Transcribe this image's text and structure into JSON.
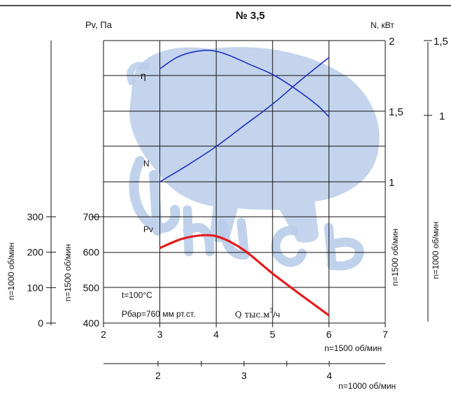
{
  "chart_data": {
    "type": "line",
    "title": "№ 3,5",
    "watermark_color": "#b9cde9",
    "x_axis_main": {
      "label": "Q тыс.м³/ч",
      "label_parts": [
        "Q тыс.м",
        "3",
        "/ч"
      ],
      "speed_label": "n=1500 об/мин",
      "range": [
        2,
        7
      ],
      "ticks": [
        "2",
        "3",
        "4",
        "5",
        "6",
        "7"
      ]
    },
    "x_axis_secondary": {
      "speed_label": "n=1000 об/мин",
      "ticks": [
        "2",
        "3",
        "4"
      ]
    },
    "y_axis_pv": {
      "label": "Pv, Па",
      "speed_label": "n=1500 об/мин",
      "range": [
        400,
        700
      ],
      "ticks": [
        "400",
        "500",
        "600",
        "700"
      ]
    },
    "y_axis_pv_1000": {
      "speed_label": "n=1000 об/мин",
      "ticks": [
        "0",
        "100",
        "200",
        "300"
      ]
    },
    "y_axis_n": {
      "label": "N, кВт",
      "speed_label": "n=1500 об/мин",
      "range": [
        1,
        2
      ],
      "ticks": [
        "1",
        "1,5",
        "2"
      ]
    },
    "y_axis_n_1000": {
      "speed_label": "n=1000 об/мин",
      "ticks": [
        "1",
        "1,5"
      ]
    },
    "series": [
      {
        "name": "Pv",
        "color": "#e41c1c",
        "x": [
          3.0,
          3.4,
          3.8,
          4.1,
          4.5,
          5.0,
          5.5,
          6.0
        ],
        "y": [
          612,
          638,
          648,
          640,
          605,
          540,
          480,
          422
        ]
      },
      {
        "name": "N",
        "color": "#1c2fbf",
        "x": [
          3.0,
          3.5,
          4.0,
          4.5,
          5.0,
          5.5,
          6.0
        ],
        "y": [
          1.0,
          1.12,
          1.25,
          1.4,
          1.55,
          1.72,
          1.88
        ]
      },
      {
        "name": "η",
        "color": "#1c2fbf",
        "x": [
          3.0,
          3.3,
          3.6,
          3.9,
          4.2,
          4.6,
          5.0,
          5.4,
          5.8,
          6.0
        ],
        "y": [
          1.8,
          1.88,
          1.92,
          1.93,
          1.9,
          1.83,
          1.76,
          1.66,
          1.54,
          1.46
        ]
      }
    ],
    "annotations": {
      "temperature": "t=100°C",
      "pressure": "Рбар=760 мм рт.ст."
    }
  }
}
